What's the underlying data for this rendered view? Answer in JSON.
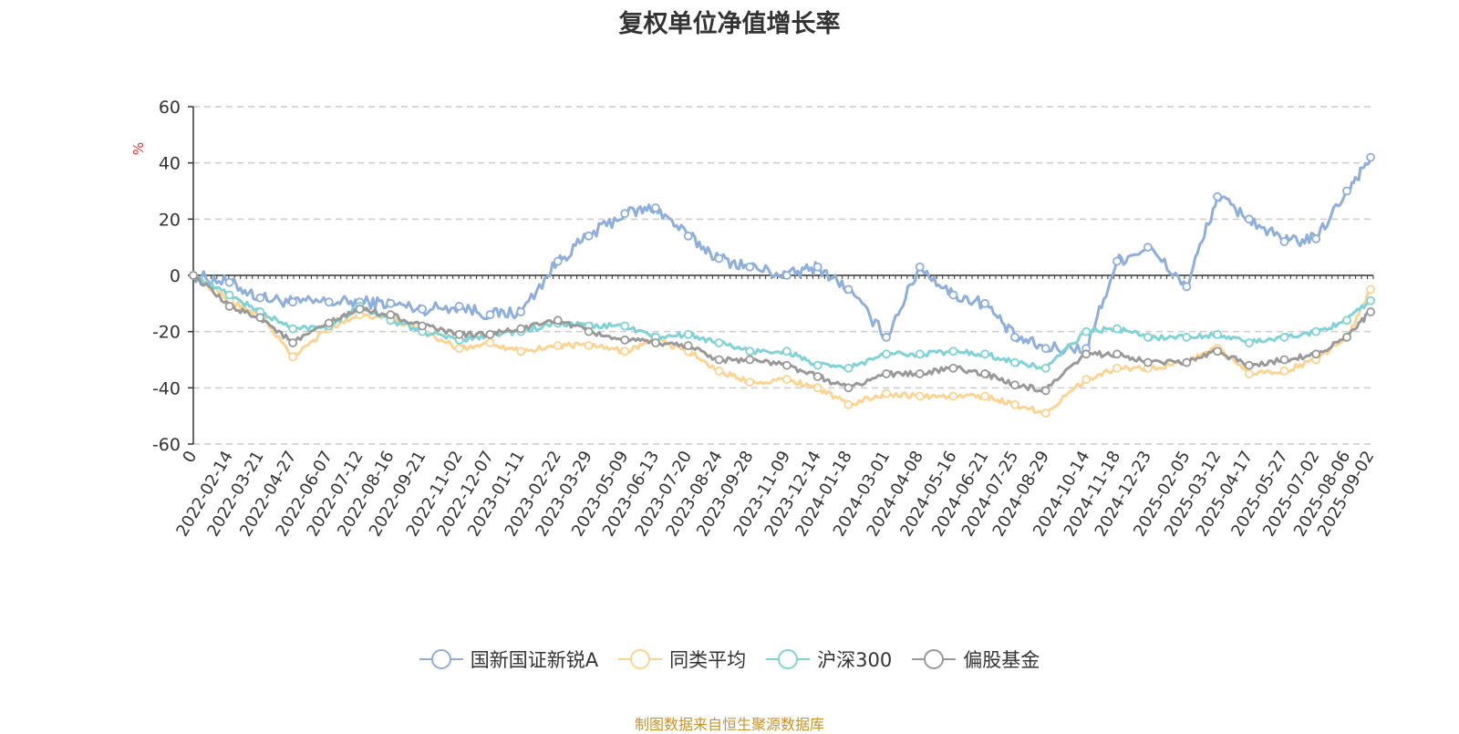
{
  "title": "复权单位净值增长率",
  "source": "制图数据来自恒生聚源数据库",
  "chart_data": {
    "type": "line",
    "title": "复权单位净值增长率",
    "ylabel": "%",
    "ylim": [
      -60,
      60
    ],
    "yticks": [
      -60,
      -40,
      -20,
      0,
      20,
      40,
      60
    ],
    "grid": "horizontal-dashed",
    "legend_position": "bottom-center",
    "x_start": "2022-01-04",
    "x_end": "2025-09-05",
    "x_tick_labels": [
      "0",
      "2022-02-14",
      "2022-03-21",
      "2022-04-27",
      "2022-06-07",
      "2022-07-12",
      "2022-08-16",
      "2022-09-21",
      "2022-11-02",
      "2022-12-07",
      "2023-01-11",
      "2023-02-22",
      "2023-03-29",
      "2023-05-09",
      "2023-06-13",
      "2023-07-20",
      "2023-08-24",
      "2023-09-28",
      "2023-11-09",
      "2023-12-14",
      "2024-01-18",
      "2024-03-01",
      "2024-04-08",
      "2024-05-16",
      "2024-06-21",
      "2024-07-25",
      "2024-08-29",
      "2024-10-14",
      "2024-11-18",
      "2024-12-23",
      "2025-02-05",
      "2025-03-12",
      "2025-04-17",
      "2025-05-27",
      "2025-07-02",
      "2025-08-06",
      "2025-09-02"
    ],
    "x": [
      "2022-01-04",
      "2022-02-14",
      "2022-03-21",
      "2022-04-27",
      "2022-06-07",
      "2022-07-12",
      "2022-08-16",
      "2022-09-21",
      "2022-11-02",
      "2022-12-07",
      "2023-01-11",
      "2023-02-22",
      "2023-03-29",
      "2023-05-09",
      "2023-06-13",
      "2023-07-20",
      "2023-08-24",
      "2023-09-28",
      "2023-11-09",
      "2023-12-14",
      "2024-01-18",
      "2024-03-01",
      "2024-04-08",
      "2024-05-16",
      "2024-06-21",
      "2024-07-25",
      "2024-08-29",
      "2024-10-14",
      "2024-11-18",
      "2024-12-23",
      "2025-02-05",
      "2025-03-12",
      "2025-04-17",
      "2025-05-27",
      "2025-07-02",
      "2025-08-06",
      "2025-09-02"
    ],
    "series": [
      {
        "name": "国新国证新锐A",
        "color": "#8eaedc",
        "values": [
          0,
          -2.5,
          -8,
          -9.5,
          -9.5,
          -9.5,
          -10,
          -12,
          -11,
          -14,
          -13,
          5,
          14,
          22,
          24,
          14,
          6,
          3,
          0,
          3,
          -5,
          -22,
          3,
          -7,
          -10,
          -22,
          -26,
          -26,
          5,
          10,
          -4,
          28,
          20,
          12,
          13,
          30,
          42
        ]
      },
      {
        "name": "同类平均",
        "color": "#fcd391",
        "values": [
          0,
          -9,
          -14,
          -29,
          -19,
          -14,
          -15,
          -20,
          -26,
          -24,
          -27,
          -25,
          -25,
          -27,
          -23,
          -27,
          -34,
          -38,
          -37,
          -40,
          -46,
          -42,
          -43,
          -43,
          -43,
          -46,
          -49,
          -37,
          -33,
          -33,
          -31,
          -26,
          -35,
          -34,
          -30,
          -22,
          -5
        ]
      },
      {
        "name": "沪深300",
        "color": "#7fd3d6",
        "values": [
          0,
          -7,
          -13,
          -19,
          -18,
          -11,
          -16,
          -20,
          -23,
          -21,
          -20,
          -17,
          -18,
          -18,
          -22,
          -21,
          -24,
          -27,
          -27,
          -32,
          -33,
          -28,
          -28,
          -27,
          -28,
          -31,
          -33,
          -20,
          -19,
          -22,
          -22,
          -21,
          -24,
          -22,
          -20,
          -16,
          -9
        ]
      },
      {
        "name": "偏股基金",
        "color": "#999999",
        "values": [
          0,
          -11,
          -15,
          -24,
          -17,
          -12,
          -14,
          -18,
          -21,
          -21,
          -19,
          -16,
          -20,
          -23,
          -24,
          -25,
          -30,
          -30,
          -32,
          -36,
          -40,
          -35,
          -35,
          -33,
          -35,
          -39,
          -41,
          -28,
          -28,
          -31,
          -31,
          -27,
          -32,
          -30,
          -28,
          -22,
          -13
        ]
      }
    ]
  }
}
